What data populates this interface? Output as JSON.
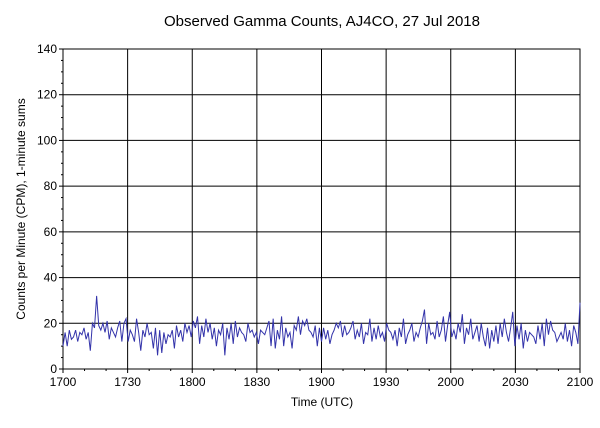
{
  "chart_data": {
    "type": "line",
    "title": "Observed Gamma Counts, AJ4CO, 27 Jul 2018",
    "xlabel": "Time (UTC)",
    "ylabel": "Counts per Minute (CPM), 1-minute sums",
    "x_tick_labels": [
      "1700",
      "1730",
      "1800",
      "1830",
      "1900",
      "1930",
      "2000",
      "2030",
      "2100"
    ],
    "y_tick_labels": [
      "0",
      "20",
      "40",
      "60",
      "80",
      "100",
      "120",
      "140"
    ],
    "xlim_minutes": [
      0,
      240
    ],
    "ylim": [
      0,
      140
    ],
    "grid": true,
    "series": [
      {
        "color": "#3333aa",
        "values": [
          10,
          16,
          10,
          17,
          13,
          14,
          17,
          12,
          16,
          15,
          18,
          13,
          16,
          8,
          20,
          18,
          32,
          19,
          17,
          20,
          16,
          21,
          13,
          18,
          16,
          14,
          18,
          21,
          12,
          20,
          22,
          12,
          17,
          15,
          12,
          22,
          16,
          8,
          17,
          14,
          20,
          15,
          16,
          9,
          18,
          6,
          17,
          7,
          16,
          11,
          15,
          14,
          17,
          9,
          19,
          14,
          17,
          12,
          20,
          16,
          19,
          14,
          21,
          18,
          23,
          11,
          19,
          14,
          22,
          16,
          20,
          13,
          18,
          10,
          17,
          15,
          20,
          6,
          18,
          13,
          20,
          11,
          21,
          14,
          18,
          16,
          15,
          12,
          20,
          16,
          17,
          14,
          16,
          11,
          17,
          16,
          15,
          18,
          21,
          10,
          22,
          9,
          17,
          13,
          23,
          10,
          18,
          14,
          16,
          9,
          19,
          17,
          23,
          15,
          21,
          19,
          22,
          17,
          16,
          14,
          19,
          10,
          18,
          12,
          18,
          13,
          17,
          11,
          15,
          17,
          20,
          18,
          21,
          14,
          19,
          15,
          16,
          18,
          21,
          13,
          17,
          14,
          20,
          11,
          16,
          15,
          22,
          12,
          18,
          13,
          19,
          14,
          16,
          12,
          20,
          17,
          16,
          13,
          17,
          10,
          18,
          14,
          22,
          11,
          15,
          17,
          20,
          12,
          16,
          14,
          18,
          21,
          26,
          11,
          20,
          15,
          16,
          13,
          21,
          14,
          17,
          23,
          12,
          19,
          25,
          14,
          17,
          13,
          20,
          16,
          24,
          11,
          18,
          15,
          22,
          13,
          16,
          19,
          12,
          20,
          14,
          10,
          18,
          9,
          17,
          12,
          19,
          11,
          20,
          14,
          22,
          16,
          12,
          18,
          25,
          10,
          19,
          13,
          20,
          9,
          17,
          12,
          16,
          15,
          14,
          11,
          19,
          13,
          20,
          10,
          22,
          15,
          21,
          17,
          16,
          12,
          14,
          16,
          13,
          20,
          12,
          17,
          10,
          19,
          16,
          11,
          29
        ]
      }
    ]
  }
}
